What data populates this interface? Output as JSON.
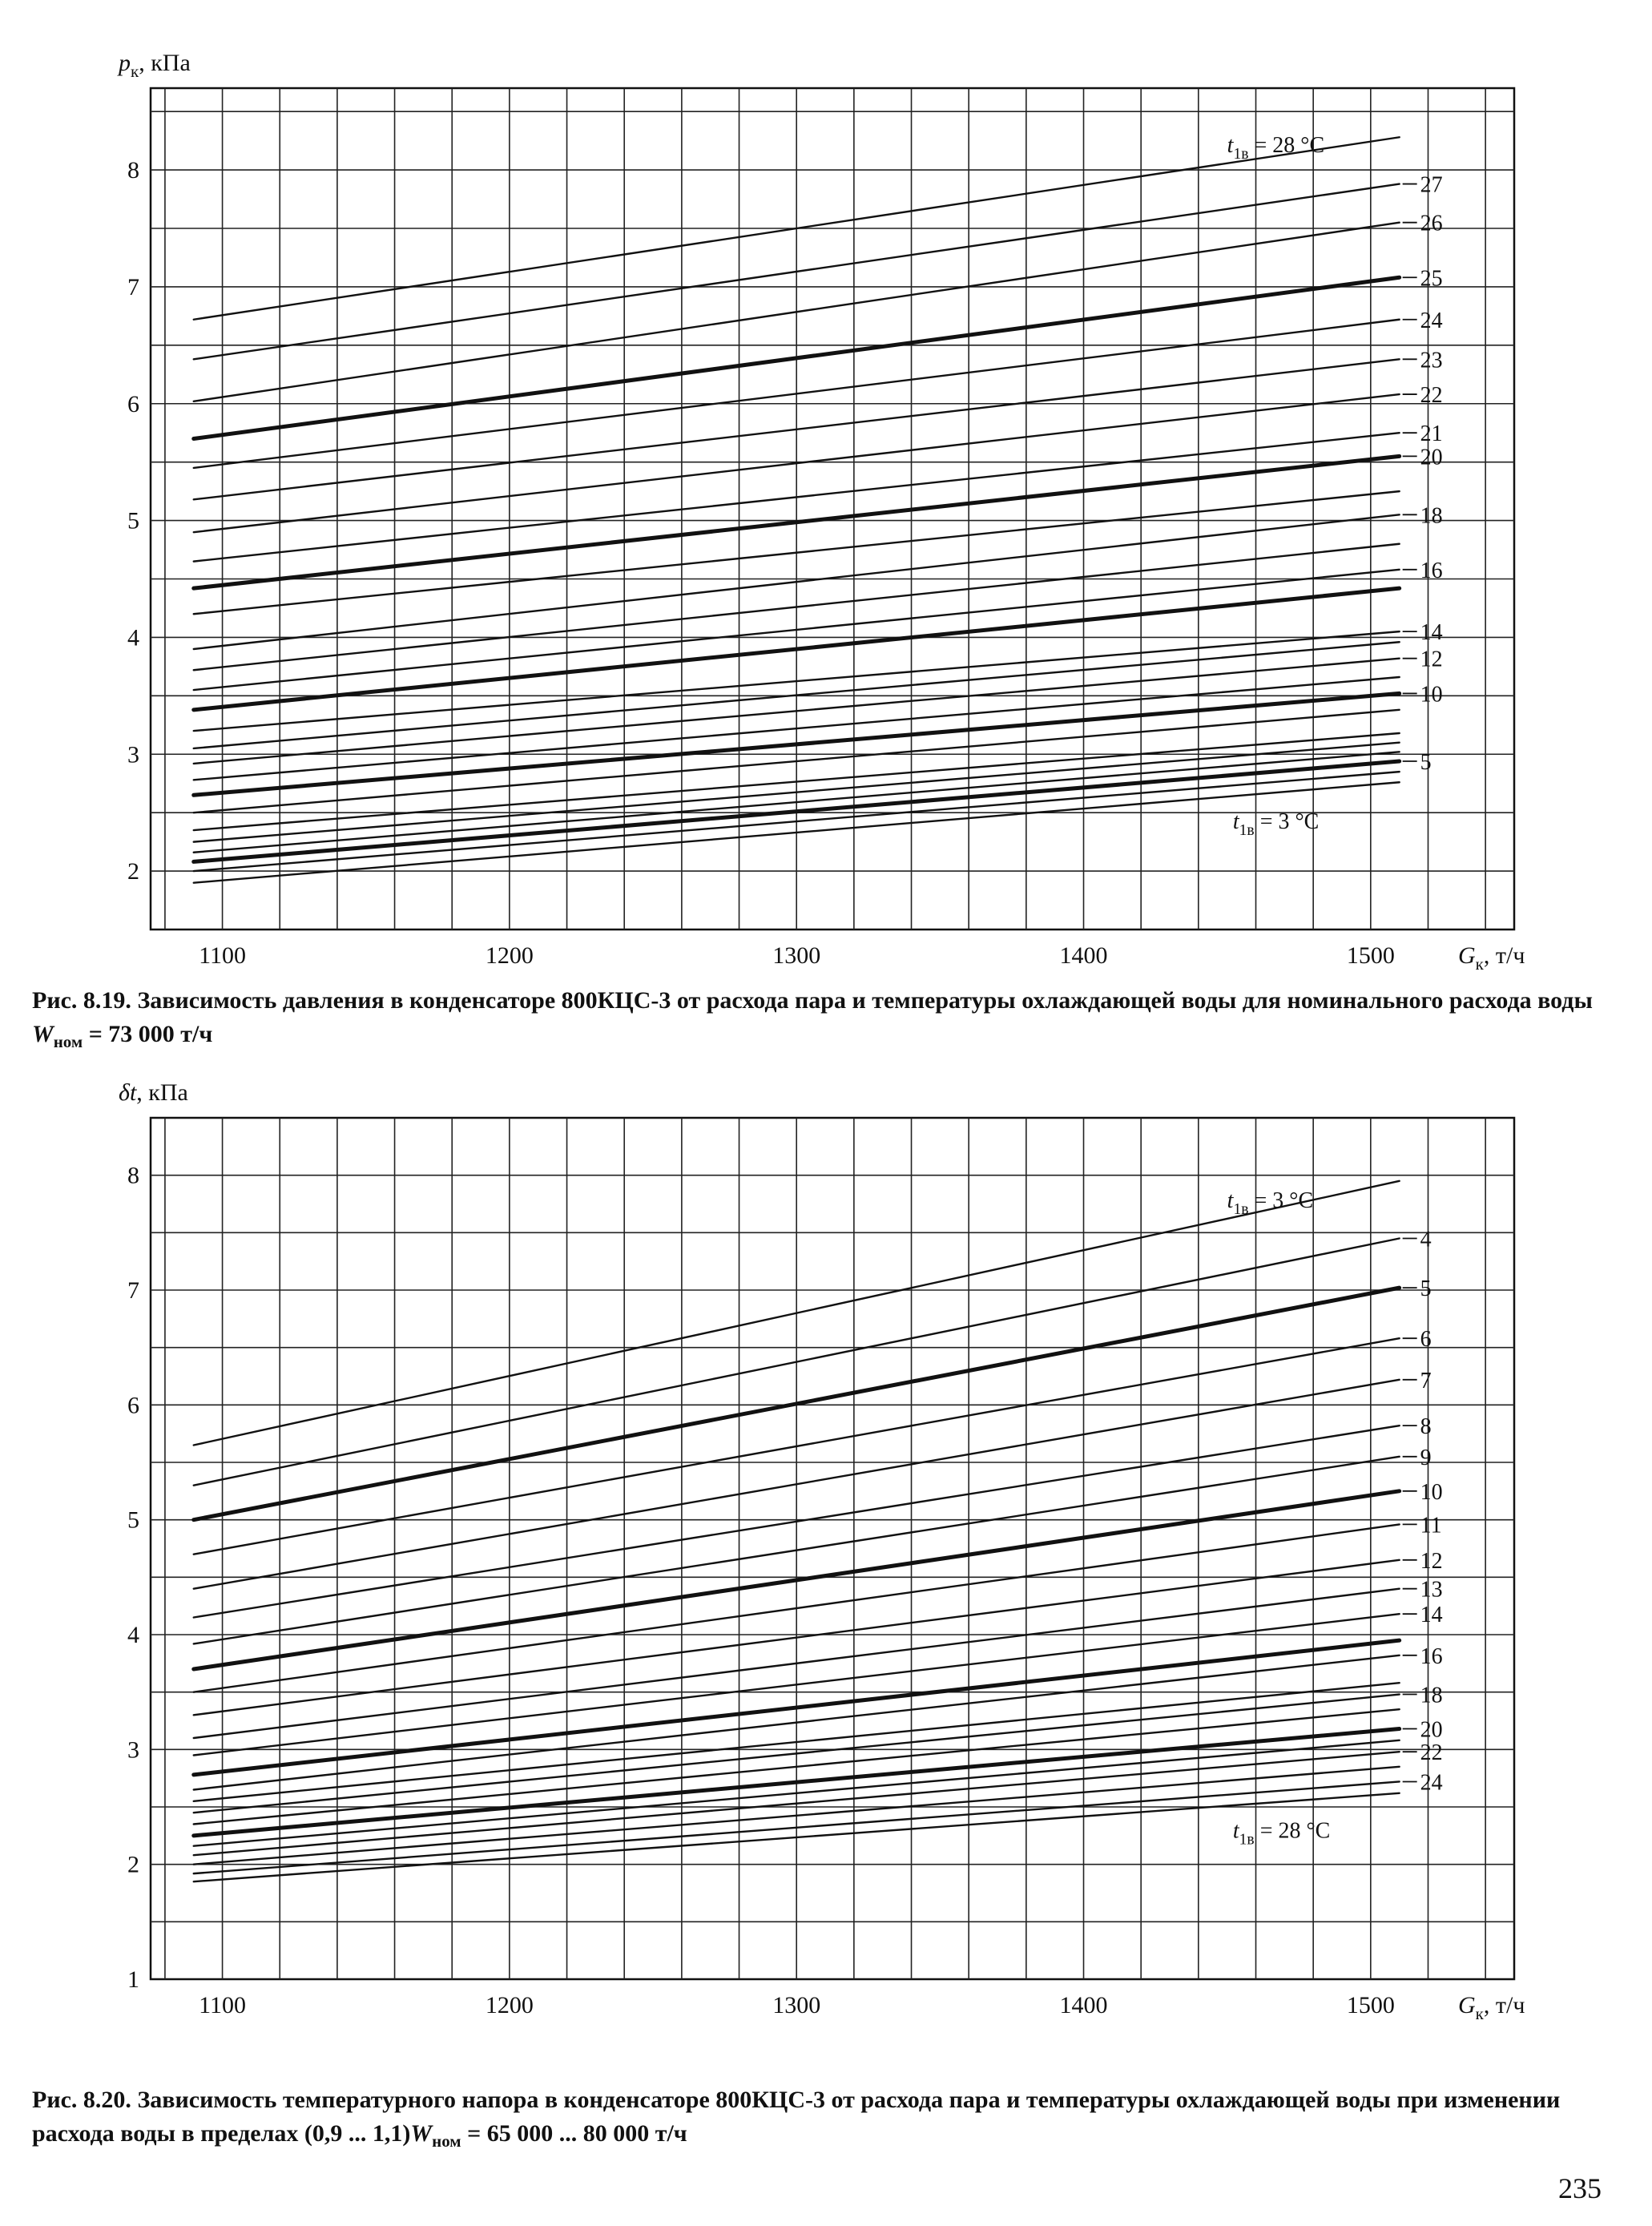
{
  "page_number": "235",
  "chart_data": [
    {
      "id": "fig-8-19",
      "type": "line",
      "caption": {
        "number": "Рис. 8.19.",
        "text": "Зависимость давления в конденсаторе 800КЦС-3 от расхода пара и температуры охлаждающей воды для номинального расхода воды",
        "w_symbol": "W",
        "w_sub": "ном",
        "w_value": "= 73 000 т/ч"
      },
      "ylabel": {
        "symbol": "p",
        "sub": "к",
        "unit": ", кПа"
      },
      "xlabel": {
        "symbol": "G",
        "sub": "к",
        "unit": ", т/ч"
      },
      "xlim": [
        1075,
        1550
      ],
      "ylim": [
        1.5,
        8.7
      ],
      "x_ticks": [
        1100,
        1200,
        1300,
        1400,
        1500
      ],
      "y_ticks": [
        2,
        3,
        4,
        5,
        6,
        7,
        8
      ],
      "x_range": [
        1090,
        1510
      ],
      "grid": true,
      "label_top": {
        "symbol": "t",
        "sub": "1в",
        "text": "= 28 °C"
      },
      "label_bottom": {
        "symbol": "t",
        "sub": "1в",
        "text": "= 3 °C"
      },
      "series": [
        {
          "t": 3,
          "y0": 1.9,
          "y1": 2.76,
          "bold": false,
          "label": ""
        },
        {
          "t": 4,
          "y0": 2.0,
          "y1": 2.85,
          "bold": false,
          "label": ""
        },
        {
          "t": 5,
          "y0": 2.08,
          "y1": 2.94,
          "bold": true,
          "label": "5"
        },
        {
          "t": 6,
          "y0": 2.16,
          "y1": 3.02,
          "bold": false,
          "label": ""
        },
        {
          "t": 7,
          "y0": 2.25,
          "y1": 3.1,
          "bold": false,
          "label": ""
        },
        {
          "t": 8,
          "y0": 2.35,
          "y1": 3.18,
          "bold": false,
          "label": ""
        },
        {
          "t": 9,
          "y0": 2.5,
          "y1": 3.38,
          "bold": false,
          "label": ""
        },
        {
          "t": 10,
          "y0": 2.65,
          "y1": 3.52,
          "bold": true,
          "label": "10"
        },
        {
          "t": 11,
          "y0": 2.78,
          "y1": 3.66,
          "bold": false,
          "label": ""
        },
        {
          "t": 12,
          "y0": 2.92,
          "y1": 3.82,
          "bold": false,
          "label": "12"
        },
        {
          "t": 13,
          "y0": 3.05,
          "y1": 3.96,
          "bold": false,
          "label": ""
        },
        {
          "t": 14,
          "y0": 3.2,
          "y1": 4.05,
          "bold": false,
          "label": "14"
        },
        {
          "t": 15,
          "y0": 3.38,
          "y1": 4.42,
          "bold": true,
          "label": ""
        },
        {
          "t": 16,
          "y0": 3.55,
          "y1": 4.58,
          "bold": false,
          "label": "16"
        },
        {
          "t": 17,
          "y0": 3.72,
          "y1": 4.8,
          "bold": false,
          "label": ""
        },
        {
          "t": 18,
          "y0": 3.9,
          "y1": 5.05,
          "bold": false,
          "label": "18"
        },
        {
          "t": 19,
          "y0": 4.2,
          "y1": 5.25,
          "bold": false,
          "label": ""
        },
        {
          "t": 20,
          "y0": 4.42,
          "y1": 5.55,
          "bold": true,
          "label": "20"
        },
        {
          "t": 21,
          "y0": 4.65,
          "y1": 5.75,
          "bold": false,
          "label": "21"
        },
        {
          "t": 22,
          "y0": 4.9,
          "y1": 6.08,
          "bold": false,
          "label": "22"
        },
        {
          "t": 23,
          "y0": 5.18,
          "y1": 6.38,
          "bold": false,
          "label": "23"
        },
        {
          "t": 24,
          "y0": 5.45,
          "y1": 6.72,
          "bold": false,
          "label": "24"
        },
        {
          "t": 25,
          "y0": 5.7,
          "y1": 7.08,
          "bold": true,
          "label": "25"
        },
        {
          "t": 26,
          "y0": 6.02,
          "y1": 7.55,
          "bold": false,
          "label": "26"
        },
        {
          "t": 27,
          "y0": 6.38,
          "y1": 7.88,
          "bold": false,
          "label": "27"
        },
        {
          "t": 28,
          "y0": 6.72,
          "y1": 8.28,
          "bold": false,
          "label": ""
        }
      ]
    },
    {
      "id": "fig-8-20",
      "type": "line",
      "caption": {
        "number": "Рис. 8.20.",
        "text": "Зависимость температурного напора в конденсаторе 800КЦС-3 от расхода пара и температуры охлаждающей воды при изменении расхода воды в пределах (0,9 ... 1,1)",
        "w_symbol": "W",
        "w_sub": "ном",
        "w_value": "= 65 000 ... 80 000 т/ч"
      },
      "ylabel": {
        "symbol": "δt",
        "sub": "",
        "unit": ", кПа"
      },
      "xlabel": {
        "symbol": "G",
        "sub": "к",
        "unit": ", т/ч"
      },
      "xlim": [
        1075,
        1550
      ],
      "ylim": [
        1.0,
        8.5
      ],
      "x_ticks": [
        1100,
        1200,
        1300,
        1400,
        1500
      ],
      "y_ticks": [
        1,
        2,
        3,
        4,
        5,
        6,
        7,
        8
      ],
      "x_range": [
        1090,
        1510
      ],
      "grid": true,
      "label_top": {
        "symbol": "t",
        "sub": "1в",
        "text": "= 3 °C"
      },
      "label_bottom": {
        "symbol": "t",
        "sub": "1в",
        "text": "= 28 °C"
      },
      "series": [
        {
          "t": 3,
          "y0": 5.65,
          "y1": 7.95,
          "bold": false,
          "label": ""
        },
        {
          "t": 4,
          "y0": 5.3,
          "y1": 7.45,
          "bold": false,
          "label": "4"
        },
        {
          "t": 5,
          "y0": 5.0,
          "y1": 7.02,
          "bold": true,
          "label": "5"
        },
        {
          "t": 6,
          "y0": 4.7,
          "y1": 6.58,
          "bold": false,
          "label": "6"
        },
        {
          "t": 7,
          "y0": 4.4,
          "y1": 6.22,
          "bold": false,
          "label": "7"
        },
        {
          "t": 8,
          "y0": 4.15,
          "y1": 5.82,
          "bold": false,
          "label": "8"
        },
        {
          "t": 9,
          "y0": 3.92,
          "y1": 5.55,
          "bold": false,
          "label": "9"
        },
        {
          "t": 10,
          "y0": 3.7,
          "y1": 5.25,
          "bold": true,
          "label": "10"
        },
        {
          "t": 11,
          "y0": 3.5,
          "y1": 4.96,
          "bold": false,
          "label": "11"
        },
        {
          "t": 12,
          "y0": 3.3,
          "y1": 4.65,
          "bold": false,
          "label": "12"
        },
        {
          "t": 13,
          "y0": 3.1,
          "y1": 4.4,
          "bold": false,
          "label": "13"
        },
        {
          "t": 14,
          "y0": 2.95,
          "y1": 4.18,
          "bold": false,
          "label": "14"
        },
        {
          "t": 15,
          "y0": 2.78,
          "y1": 3.95,
          "bold": true,
          "label": ""
        },
        {
          "t": 16,
          "y0": 2.65,
          "y1": 3.82,
          "bold": false,
          "label": "16"
        },
        {
          "t": 17,
          "y0": 2.55,
          "y1": 3.58,
          "bold": false,
          "label": ""
        },
        {
          "t": 18,
          "y0": 2.45,
          "y1": 3.48,
          "bold": false,
          "label": "18"
        },
        {
          "t": 19,
          "y0": 2.35,
          "y1": 3.35,
          "bold": false,
          "label": ""
        },
        {
          "t": 20,
          "y0": 2.25,
          "y1": 3.18,
          "bold": true,
          "label": "20"
        },
        {
          "t": 21,
          "y0": 2.16,
          "y1": 3.08,
          "bold": false,
          "label": ""
        },
        {
          "t": 22,
          "y0": 2.08,
          "y1": 2.98,
          "bold": false,
          "label": "22"
        },
        {
          "t": 23,
          "y0": 2.0,
          "y1": 2.85,
          "bold": false,
          "label": ""
        },
        {
          "t": 24,
          "y0": 1.92,
          "y1": 2.72,
          "bold": false,
          "label": "24"
        },
        {
          "t": 28,
          "y0": 1.85,
          "y1": 2.62,
          "bold": false,
          "label": ""
        }
      ]
    }
  ]
}
